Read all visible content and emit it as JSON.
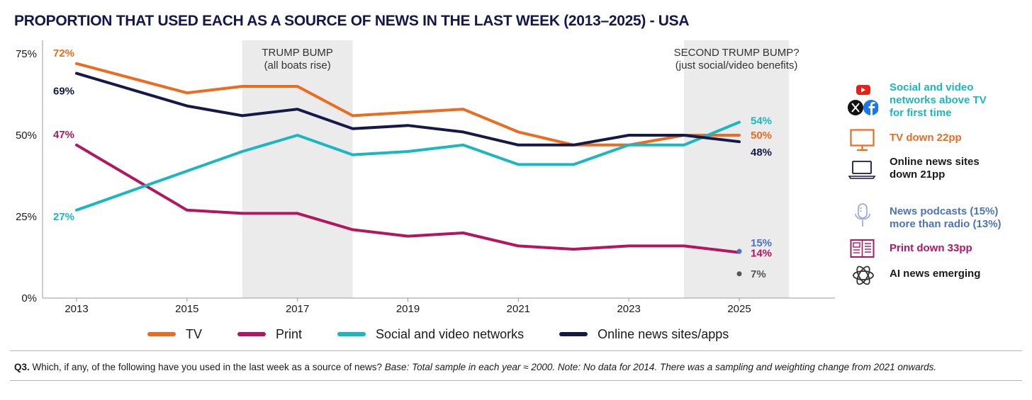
{
  "title": "PROPORTION THAT USED EACH AS A SOURCE OF NEWS IN THE LAST WEEK (2013–2025) - USA",
  "colors": {
    "tv": "#ec6b1f",
    "print": "#b5145f",
    "social": "#1ab7c0",
    "online": "#15194a",
    "podcast": "#4a73c1",
    "ai": "#555555",
    "band": "#ebebeb"
  },
  "chart_data": {
    "type": "line",
    "x": [
      2013,
      2015,
      2016,
      2017,
      2018,
      2019,
      2020,
      2021,
      2022,
      2023,
      2024,
      2025
    ],
    "xticks": [
      "2013",
      "2015",
      "2017",
      "2019",
      "2021",
      "2023",
      "2025"
    ],
    "yticks": [
      "0%",
      "25%",
      "50%",
      "75%"
    ],
    "ylim": [
      0,
      75
    ],
    "series": [
      {
        "name": "TV",
        "color": "#ec6b1f",
        "values": [
          72,
          63,
          65,
          65,
          56,
          57,
          58,
          51,
          47,
          47,
          50,
          50
        ]
      },
      {
        "name": "Print",
        "color": "#b5145f",
        "values": [
          47,
          27,
          26,
          26,
          21,
          19,
          20,
          16,
          15,
          16,
          16,
          14
        ]
      },
      {
        "name": "Social and video networks",
        "color": "#1ab7c0",
        "values": [
          27,
          39,
          45,
          50,
          44,
          45,
          47,
          41,
          41,
          47,
          47,
          54
        ]
      },
      {
        "name": "Online news sites/apps",
        "color": "#15194a",
        "values": [
          69,
          59,
          56,
          58,
          52,
          53,
          51,
          47,
          47,
          50,
          50,
          48
        ]
      }
    ],
    "start_labels": [
      {
        "text": "72%",
        "series": 0
      },
      {
        "text": "69%",
        "series": 3
      },
      {
        "text": "47%",
        "series": 1
      },
      {
        "text": "27%",
        "series": 2
      }
    ],
    "end_labels": [
      {
        "text": "54%",
        "series": 2
      },
      {
        "text": "50%",
        "series": 0
      },
      {
        "text": "48%",
        "series": 3
      },
      {
        "text": "14%",
        "series": 1
      }
    ],
    "extra_points": [
      {
        "name": "Podcasts",
        "x": 2025,
        "y": 15,
        "label": "15%",
        "color": "#4a73c1"
      },
      {
        "name": "AI",
        "x": 2025,
        "y": 7,
        "label": "7%",
        "color": "#555555"
      }
    ],
    "bands": [
      {
        "x0": 2016,
        "x1": 2018,
        "label_line1": "TRUMP BUMP",
        "label_line2": "(all boats rise)"
      },
      {
        "x0": 2024,
        "x1": 2025.9,
        "label_line1": "SECOND TRUMP BUMP?",
        "label_line2": "(just social/video benefits)"
      }
    ]
  },
  "legend": [
    {
      "label": "TV",
      "color": "#ec6b1f"
    },
    {
      "label": "Print",
      "color": "#b5145f"
    },
    {
      "label": "Social and video networks",
      "color": "#1ab7c0"
    },
    {
      "label": "Online news sites/apps",
      "color": "#15194a"
    }
  ],
  "side_notes": [
    {
      "icon": "social-icons",
      "lines": [
        "Social and video",
        "networks above TV",
        "for first time"
      ],
      "color": "#1ab7c0"
    },
    {
      "icon": "tv-icon",
      "lines": [
        "TV down 22pp"
      ],
      "color": "#ec6b1f"
    },
    {
      "icon": "laptop-icon",
      "lines": [
        "Online news sites",
        "down 21pp"
      ],
      "color": "#1a1a1a"
    },
    {
      "icon": "microphone-icon",
      "lines": [
        "News podcasts (15%)",
        "more than radio (13%)"
      ],
      "color": "#4a73c1"
    },
    {
      "icon": "newspaper-icon",
      "lines": [
        "Print down 33pp"
      ],
      "color": "#b5145f"
    },
    {
      "icon": "openai-icon",
      "lines": [
        "AI news emerging"
      ],
      "color": "#1a1a1a"
    }
  ],
  "footnote": {
    "q": "Q3.",
    "text": " Which, if any, of the following have you used in the last week as a source of news? ",
    "italic": "Base: Total sample in each year ≈ 2000. Note: No data for 2014. There was a sampling and weighting change from 2021 onwards."
  }
}
